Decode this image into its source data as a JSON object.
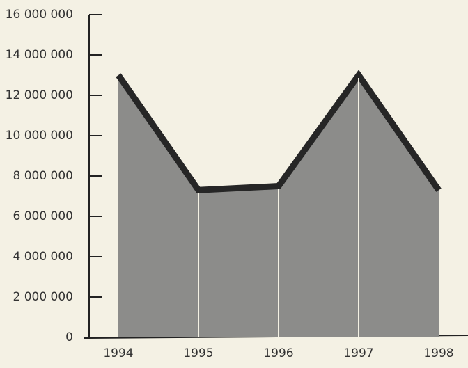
{
  "chart_data": {
    "type": "area",
    "categories": [
      "1994",
      "1995",
      "1996",
      "1997",
      "1998"
    ],
    "values": [
      13000000,
      7300000,
      7500000,
      13000000,
      7300000
    ],
    "color": "#8c8c8a",
    "line_color": "#262626",
    "ylim": [
      0,
      16000000
    ],
    "yticks": [
      0,
      {
        "value": 2000000,
        "label": "2 000 000"
      },
      {
        "value": 4000000,
        "label": "4 000 000"
      },
      {
        "value": 6000000,
        "label": "6 000 000"
      },
      {
        "value": 8000000,
        "label": "8 000 000"
      },
      {
        "value": 10000000,
        "label": "10 000 000"
      },
      {
        "value": 12000000,
        "label": "12 000 000"
      },
      {
        "value": 14000000,
        "label": "14 000 000"
      },
      {
        "value": 16000000,
        "label": "16 000 000"
      }
    ]
  }
}
